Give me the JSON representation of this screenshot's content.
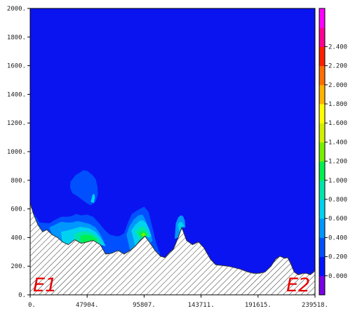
{
  "chart_data": {
    "type": "heatmap",
    "title": "",
    "xlabel": "",
    "ylabel": "",
    "xlim": [
      0,
      239518
    ],
    "ylim": [
      0,
      2000
    ],
    "x_ticks": [
      "0.",
      "47904.",
      "95807.",
      "143711.",
      "191615.",
      "239518."
    ],
    "y_ticks": [
      "0.",
      "200.",
      "400.",
      "600.",
      "800.",
      "1000.",
      "1200.",
      "1400.",
      "1600.",
      "1800.",
      "2000."
    ],
    "corner_labels": {
      "left": "E1",
      "right": "E2"
    },
    "colorbar": {
      "tick_labels": [
        "0.000",
        "0.200",
        "0.400",
        "0.600",
        "0.800",
        "1.000",
        "1.200",
        "1.400",
        "1.600",
        "1.800",
        "2.000",
        "2.200",
        "2.400"
      ],
      "levels": [
        0.0,
        0.2,
        0.4,
        0.6,
        0.8,
        1.0,
        1.2,
        1.4,
        1.6,
        1.8,
        2.0,
        2.2,
        2.4
      ],
      "colors": [
        "#7a00e6",
        "#0014ff",
        "#0050ff",
        "#0096ff",
        "#00d2f0",
        "#00e6aa",
        "#00f050",
        "#78f000",
        "#d2f000",
        "#ffff00",
        "#ffb400",
        "#ff6e00",
        "#ff1e00",
        "#ff0096",
        "#ff00ff"
      ]
    },
    "background_color": "#0a14f0",
    "terrain": {
      "x": [
        0,
        3000,
        6500,
        10500,
        14000,
        18500,
        23000,
        27000,
        32000,
        37500,
        43000,
        48500,
        53000,
        59000,
        63500,
        68500,
        74000,
        79000,
        84000,
        88500,
        92500,
        96500,
        101000,
        105000,
        109500,
        113500,
        116500,
        120500,
        124500,
        127500,
        131500,
        136500,
        141500,
        146000,
        151500,
        156000,
        161500,
        166500,
        171500,
        176500,
        183000,
        188000,
        192500,
        197500,
        202500,
        206500,
        210000,
        214000,
        216500,
        219000,
        222000,
        225500,
        229500,
        232500,
        235500,
        238500,
        239518
      ],
      "y": [
        640,
        560,
        490,
        440,
        455,
        420,
        400,
        370,
        350,
        385,
        360,
        370,
        380,
        350,
        285,
        290,
        310,
        285,
        310,
        340,
        380,
        410,
        360,
        310,
        270,
        260,
        290,
        320,
        400,
        470,
        380,
        350,
        370,
        330,
        250,
        210,
        205,
        200,
        190,
        180,
        160,
        150,
        150,
        160,
        200,
        250,
        270,
        255,
        260,
        220,
        160,
        140,
        150,
        150,
        140,
        160,
        175
      ]
    },
    "contours": [
      {
        "level": 0.2,
        "color": "#0050ff",
        "points": [
          [
            3000,
            570
          ],
          [
            8000,
            505
          ],
          [
            16500,
            500
          ],
          [
            20000,
            520
          ],
          [
            26000,
            545
          ],
          [
            31500,
            545
          ],
          [
            35000,
            550
          ],
          [
            38500,
            565
          ],
          [
            42500,
            555
          ],
          [
            47900,
            560
          ],
          [
            53000,
            545
          ],
          [
            58000,
            500
          ],
          [
            63000,
            450
          ],
          [
            67000,
            420
          ],
          [
            72000,
            410
          ],
          [
            75000,
            410
          ],
          [
            79000,
            430
          ],
          [
            82500,
            510
          ],
          [
            85500,
            565
          ],
          [
            89000,
            585
          ],
          [
            92000,
            600
          ],
          [
            95800,
            615
          ],
          [
            99500,
            580
          ],
          [
            103500,
            450
          ],
          [
            106000,
            360
          ],
          [
            109000,
            290
          ],
          [
            109500,
            270
          ],
          [
            104000,
            310
          ],
          [
            99000,
            360
          ],
          [
            95000,
            360
          ],
          [
            91500,
            345
          ],
          [
            88000,
            360
          ],
          [
            84000,
            310
          ],
          [
            79500,
            285
          ],
          [
            74000,
            310
          ],
          [
            68500,
            290
          ],
          [
            63500,
            285
          ],
          [
            59000,
            350
          ],
          [
            53000,
            380
          ],
          [
            48500,
            370
          ],
          [
            43000,
            360
          ],
          [
            37500,
            385
          ],
          [
            32000,
            350
          ],
          [
            27000,
            370
          ],
          [
            23000,
            400
          ],
          [
            18500,
            420
          ],
          [
            14000,
            455
          ],
          [
            10500,
            440
          ],
          [
            6500,
            490
          ]
        ]
      },
      {
        "level": 0.2,
        "color": "#0050ff",
        "points": [
          [
            34000,
            790
          ],
          [
            38000,
            835
          ],
          [
            42000,
            855
          ],
          [
            44500,
            870
          ],
          [
            48000,
            865
          ],
          [
            52000,
            840
          ],
          [
            55000,
            810
          ],
          [
            56500,
            760
          ],
          [
            57000,
            700
          ],
          [
            55000,
            650
          ],
          [
            51000,
            625
          ],
          [
            47500,
            640
          ],
          [
            43500,
            665
          ],
          [
            39500,
            690
          ],
          [
            35500,
            710
          ],
          [
            33500,
            750
          ]
        ]
      },
      {
        "level": 0.4,
        "color": "#0096ff",
        "points": [
          [
            16000,
            470
          ],
          [
            21000,
            490
          ],
          [
            26000,
            510
          ],
          [
            31000,
            505
          ],
          [
            35000,
            505
          ],
          [
            40000,
            515
          ],
          [
            45000,
            505
          ],
          [
            50000,
            495
          ],
          [
            55000,
            470
          ],
          [
            58500,
            430
          ],
          [
            61500,
            380
          ],
          [
            63500,
            340
          ],
          [
            59000,
            350
          ],
          [
            53000,
            380
          ],
          [
            48500,
            370
          ],
          [
            43000,
            360
          ],
          [
            37500,
            385
          ],
          [
            32000,
            350
          ],
          [
            27000,
            370
          ],
          [
            23000,
            400
          ],
          [
            18500,
            420
          ]
        ]
      },
      {
        "level": 0.4,
        "color": "#0096ff",
        "points": [
          [
            81000,
            420
          ],
          [
            83500,
            480
          ],
          [
            87000,
            525
          ],
          [
            91000,
            555
          ],
          [
            94500,
            560
          ],
          [
            96500,
            530
          ],
          [
            99500,
            470
          ],
          [
            101500,
            420
          ],
          [
            103000,
            380
          ],
          [
            101000,
            360
          ],
          [
            96500,
            410
          ],
          [
            92500,
            380
          ],
          [
            88500,
            340
          ],
          [
            84000,
            310
          ]
        ]
      },
      {
        "level": 0.4,
        "color": "#0096ff",
        "points": [
          [
            122500,
            500
          ],
          [
            124500,
            540
          ],
          [
            126500,
            555
          ],
          [
            128500,
            550
          ],
          [
            130000,
            520
          ],
          [
            130500,
            470
          ],
          [
            127500,
            470
          ],
          [
            124500,
            400
          ],
          [
            121500,
            390
          ]
        ]
      },
      {
        "level": 0.6,
        "color": "#00d2f0",
        "points": [
          [
            26000,
            440
          ],
          [
            31000,
            450
          ],
          [
            36000,
            460
          ],
          [
            42000,
            475
          ],
          [
            47000,
            470
          ],
          [
            51000,
            460
          ],
          [
            55000,
            440
          ],
          [
            58500,
            405
          ],
          [
            61500,
            370
          ],
          [
            63500,
            340
          ],
          [
            59000,
            350
          ],
          [
            53000,
            380
          ],
          [
            48500,
            370
          ],
          [
            43000,
            360
          ],
          [
            37500,
            385
          ],
          [
            32000,
            350
          ],
          [
            27000,
            370
          ]
        ]
      },
      {
        "level": 0.6,
        "color": "#00d2f0",
        "points": [
          [
            85000,
            450
          ],
          [
            88500,
            490
          ],
          [
            92000,
            515
          ],
          [
            95000,
            520
          ],
          [
            97500,
            500
          ],
          [
            100000,
            460
          ],
          [
            102000,
            410
          ],
          [
            100000,
            400
          ],
          [
            96500,
            410
          ],
          [
            92500,
            380
          ],
          [
            88500,
            340
          ]
        ]
      },
      {
        "level": 0.6,
        "color": "#00d2f0",
        "points": [
          [
            124000,
            490
          ],
          [
            126000,
            510
          ],
          [
            128000,
            505
          ],
          [
            129500,
            480
          ],
          [
            127500,
            470
          ],
          [
            125500,
            440
          ]
        ]
      },
      {
        "level": 0.6,
        "color": "#00d2f0",
        "points": [
          [
            51000,
            650
          ],
          [
            52500,
            700
          ],
          [
            54000,
            705
          ],
          [
            54500,
            680
          ],
          [
            53500,
            640
          ]
        ]
      },
      {
        "level": 0.8,
        "color": "#00e6aa",
        "points": [
          [
            36500,
            420
          ],
          [
            41000,
            440
          ],
          [
            46000,
            445
          ],
          [
            51000,
            435
          ],
          [
            55000,
            415
          ],
          [
            58000,
            390
          ],
          [
            59500,
            355
          ],
          [
            53000,
            380
          ],
          [
            48500,
            370
          ],
          [
            43000,
            360
          ],
          [
            37500,
            385
          ]
        ]
      },
      {
        "level": 0.8,
        "color": "#00e6aa",
        "points": [
          [
            88000,
            440
          ],
          [
            91500,
            470
          ],
          [
            94500,
            480
          ],
          [
            97000,
            465
          ],
          [
            99500,
            430
          ],
          [
            100500,
            405
          ],
          [
            96500,
            410
          ],
          [
            92500,
            380
          ]
        ]
      },
      {
        "level": 1.0,
        "color": "#00f050",
        "points": [
          [
            42000,
            410
          ],
          [
            46500,
            420
          ],
          [
            51000,
            415
          ],
          [
            54500,
            400
          ],
          [
            57500,
            375
          ],
          [
            53000,
            380
          ],
          [
            48500,
            370
          ],
          [
            43000,
            360
          ]
        ]
      },
      {
        "level": 1.0,
        "color": "#00f050",
        "points": [
          [
            91000,
            430
          ],
          [
            94500,
            450
          ],
          [
            97000,
            440
          ],
          [
            99000,
            415
          ],
          [
            96500,
            410
          ],
          [
            93500,
            400
          ]
        ]
      },
      {
        "level": 1.2,
        "color": "#78f000",
        "points": [
          [
            93500,
            425
          ],
          [
            95500,
            435
          ],
          [
            97000,
            425
          ],
          [
            96500,
            410
          ],
          [
            94500,
            405
          ]
        ]
      }
    ]
  }
}
